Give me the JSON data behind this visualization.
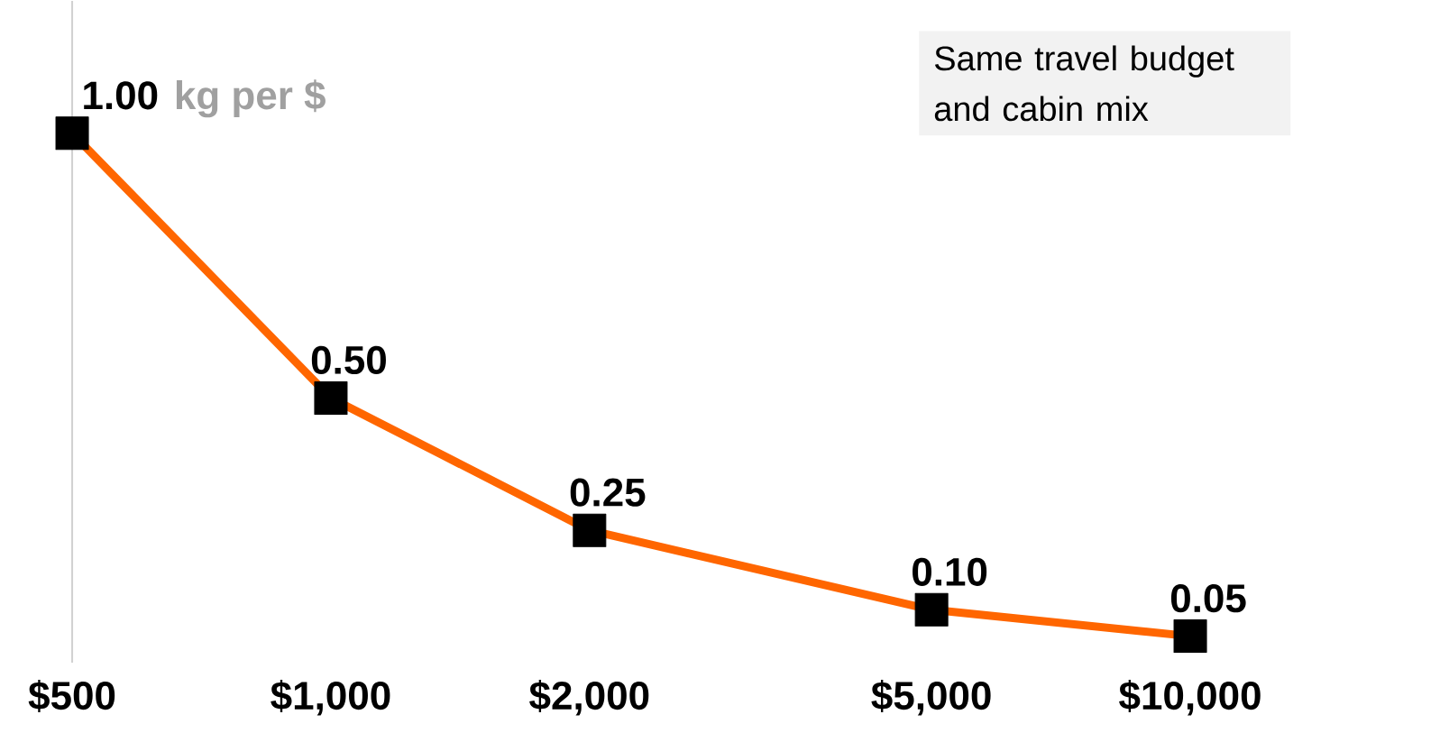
{
  "chart_data": {
    "type": "line",
    "x": [
      500,
      1000,
      2000,
      5000,
      10000
    ],
    "values": [
      1.0,
      0.5,
      0.25,
      0.1,
      0.05
    ],
    "value_labels": [
      "1.00",
      "0.50",
      "0.25",
      "0.10",
      "0.05"
    ],
    "color": "#ff6600",
    "marker": "square",
    "log": "x",
    "xlim": [
      500,
      10000
    ],
    "ylim": [
      0,
      1.25
    ],
    "xticks": [
      {
        "value": 500,
        "label": "$500"
      },
      {
        "value": 1000,
        "label": "$1,000"
      },
      {
        "value": 2000,
        "label": "$2,000"
      },
      {
        "value": 5000,
        "label": "$5,000"
      },
      {
        "value": 10000,
        "label": "$10,000"
      }
    ],
    "tick_labels": "x",
    "annotations": [
      "kg per $",
      "Same travel budget and cabin mix"
    ]
  }
}
